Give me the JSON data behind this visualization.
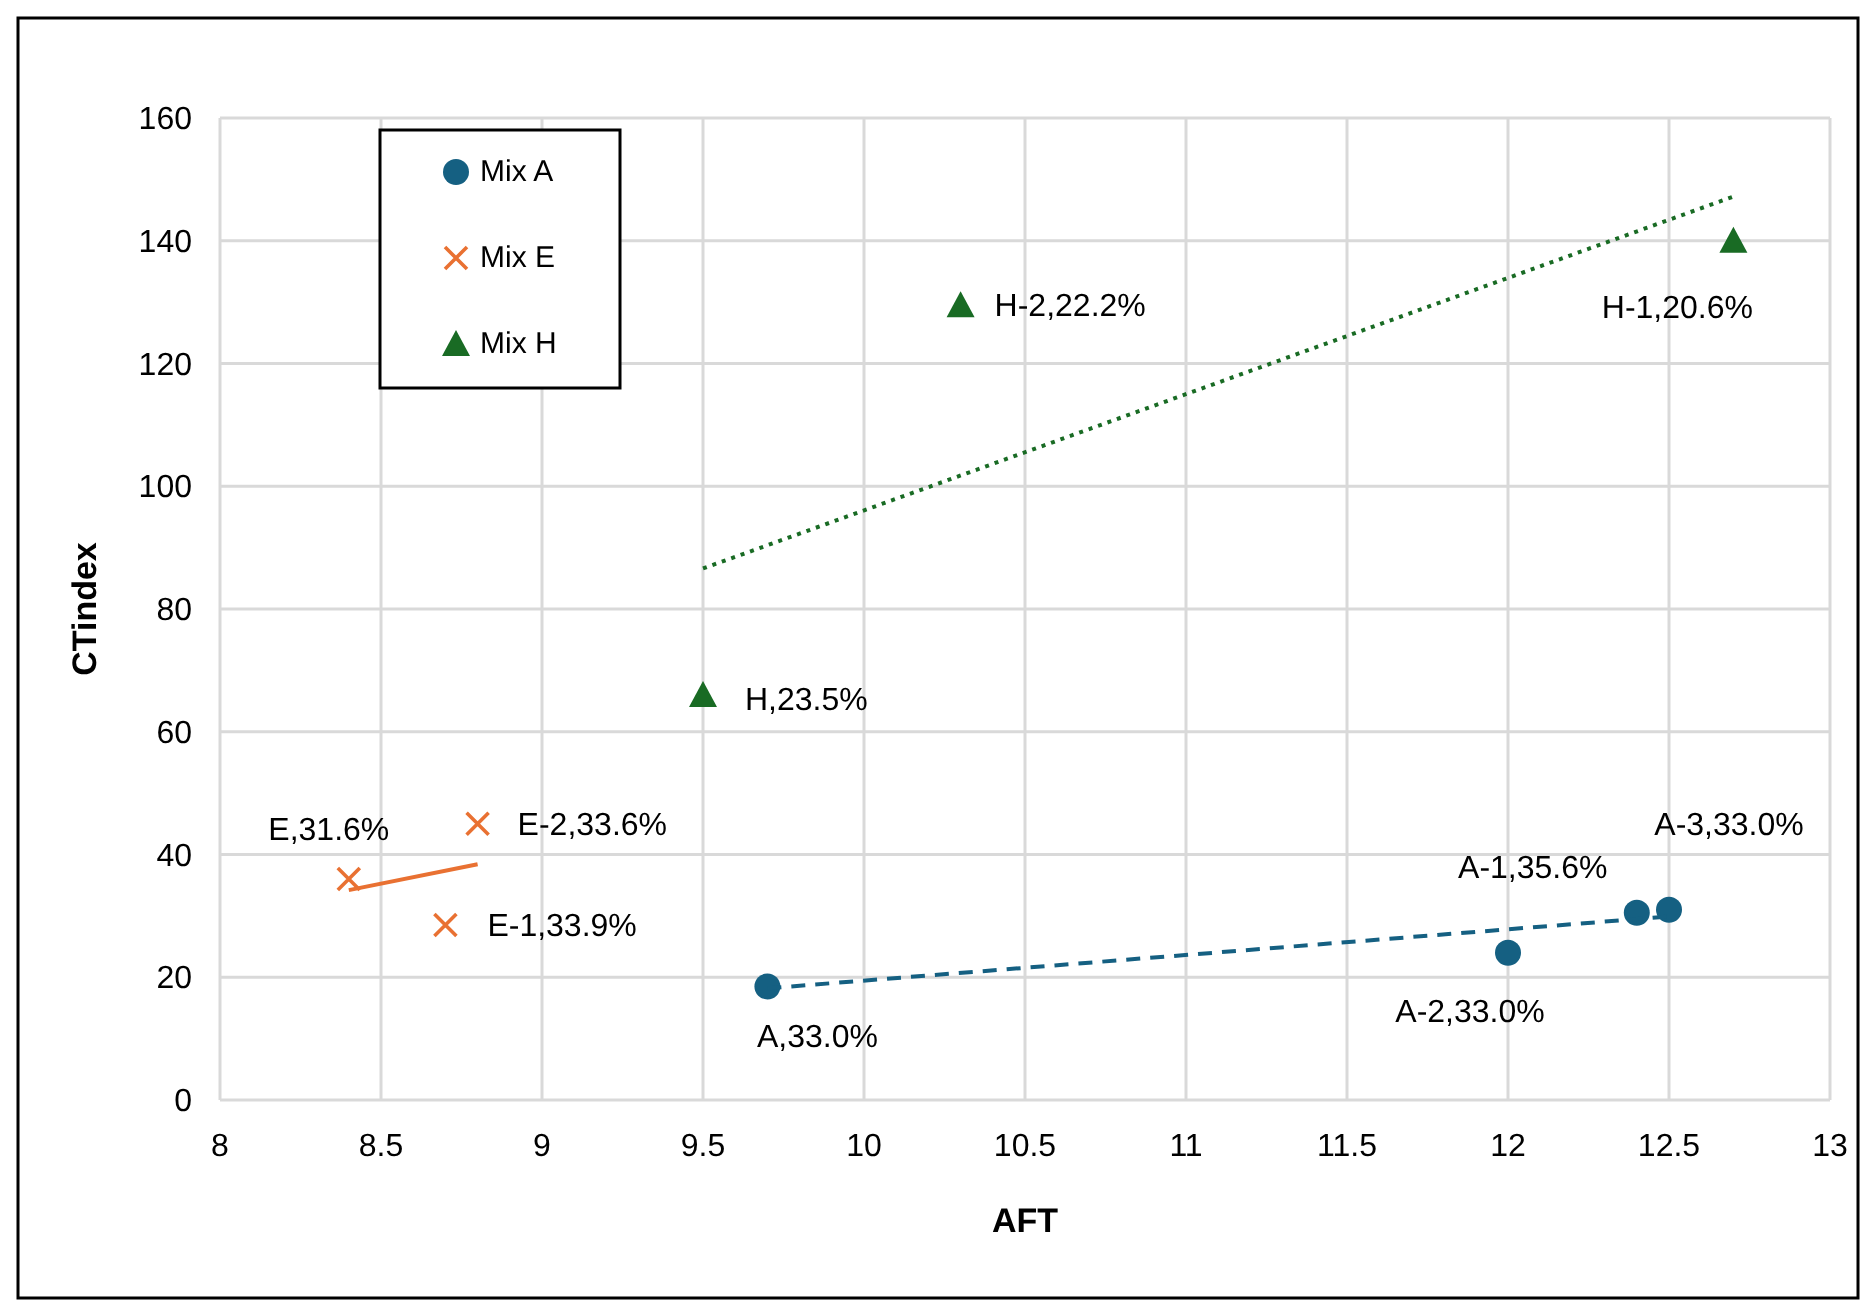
{
  "chart_data": {
    "type": "scatter",
    "xlabel": "AFT",
    "ylabel": "CTindex",
    "xlim": [
      8,
      13
    ],
    "xticks": [
      8,
      {
        "value": 8.5,
        "label": "8.5"
      },
      9,
      {
        "value": 9.5,
        "label": "9.5"
      },
      10,
      {
        "value": 10.5,
        "label": "10.5"
      },
      11,
      {
        "value": 11.5,
        "label": "11.5"
      },
      12,
      {
        "value": 12.5,
        "label": "12.5"
      },
      13
    ],
    "ylim": [
      0,
      160
    ],
    "yticks": [
      0,
      20,
      40,
      60,
      80,
      100,
      120,
      140,
      160
    ],
    "grid": true,
    "legend": "top left",
    "series": [
      {
        "name": "Mix A",
        "marker": "circle",
        "color": "#156082",
        "x": [
          9.7,
          12,
          12.4,
          12.5
        ],
        "values": [
          18.5,
          24,
          30.5,
          31
        ]
      },
      {
        "name": "Mix E",
        "marker": "cross",
        "color": "#e97132",
        "x": [
          8.4,
          8.7,
          8.8
        ],
        "values": [
          36,
          28.5,
          45
        ]
      },
      {
        "name": "Mix H",
        "marker": "triangle",
        "color": "#196b24",
        "x": [
          9.5,
          10.3,
          12.7
        ],
        "values": [
          66,
          129.5,
          140
        ]
      },
      {
        "type": "line",
        "marker": "none",
        "line_style": "dashed",
        "color": "#156082",
        "x": [
          9.7,
          12.5
        ],
        "values": [
          18.2,
          29.9
        ]
      },
      {
        "type": "line",
        "marker": "none",
        "line_style": "solid",
        "color": "#e97132",
        "x": [
          8.4,
          8.8
        ],
        "values": [
          34.2,
          38.4
        ]
      },
      {
        "type": "line",
        "marker": "none",
        "line_style": "dotted",
        "color": "#196b24",
        "x": [
          9.5,
          12.7
        ],
        "values": [
          86.6,
          147.2
        ]
      }
    ],
    "annotations": [
      {
        "text": "A,33.0%",
        "x": 9.7,
        "y": 18.5
      },
      {
        "text": "A-1,35.6%",
        "x": 12.4,
        "y": 30.5
      },
      {
        "text": "A-2,33.0%",
        "x": 12,
        "y": 24
      },
      {
        "text": "A-3,33.0%",
        "x": 12.5,
        "y": 31
      },
      {
        "text": "E,31.6%",
        "x": 8.4,
        "y": 36
      },
      {
        "text": "E-1,33.9%",
        "x": 8.7,
        "y": 28.5
      },
      {
        "text": "E-2,33.6%",
        "x": 8.8,
        "y": 45
      },
      {
        "text": "H,23.5%",
        "x": 9.5,
        "y": 66
      },
      {
        "text": "H-1,20.6%",
        "x": 12.7,
        "y": 140
      },
      {
        "text": "H-2,22.2%",
        "x": 10.3,
        "y": 129.5
      }
    ]
  }
}
